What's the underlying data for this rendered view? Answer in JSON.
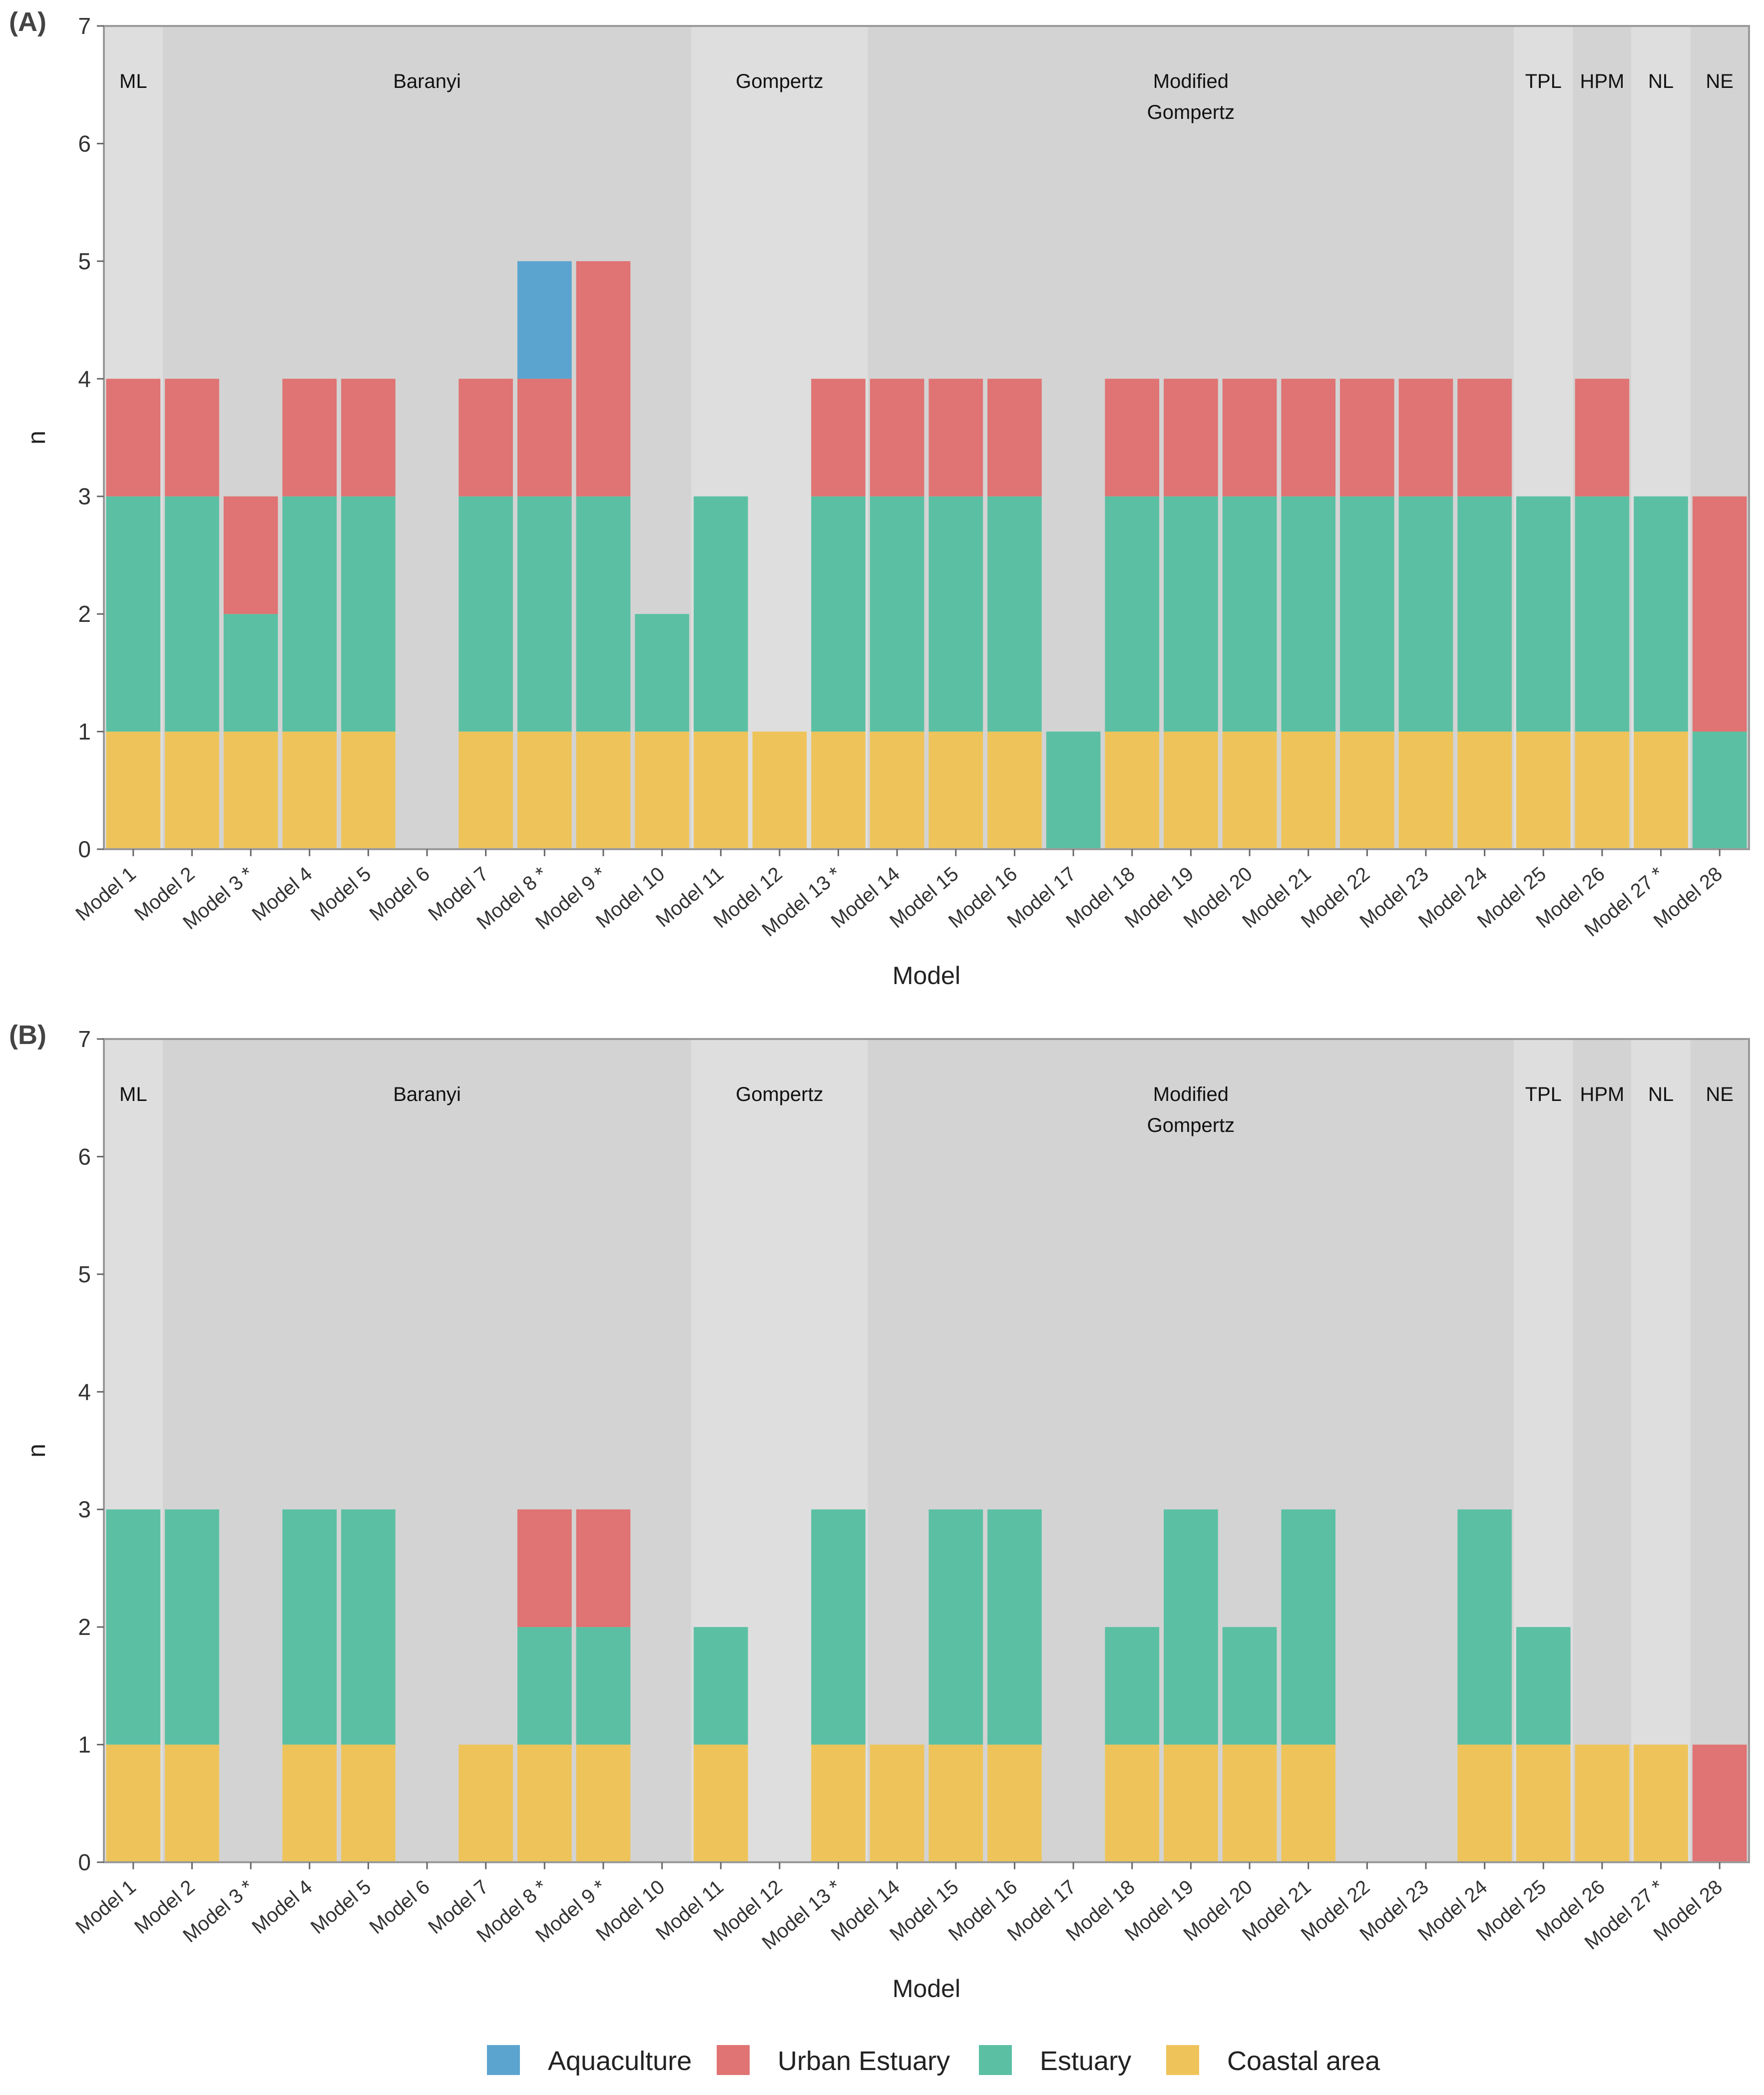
{
  "chart_data": {
    "type": "bar",
    "stacked": true,
    "categories": [
      "Model 1",
      "Model 2",
      "Model 3 *",
      "Model 4",
      "Model 5",
      "Model 6",
      "Model 7",
      "Model 8 *",
      "Model 9 *",
      "Model 10",
      "Model 11",
      "Model 12",
      "Model 13 *",
      "Model 14",
      "Model 15",
      "Model 16",
      "Model 17",
      "Model 18",
      "Model 19",
      "Model 20",
      "Model 21",
      "Model 22",
      "Model 23",
      "Model 24",
      "Model 25",
      "Model 26",
      "Model 27 *",
      "Model 28"
    ],
    "legend": [
      {
        "name": "Aquaculture",
        "color": "#5ba4cf"
      },
      {
        "name": "Urban Estuary",
        "color": "#e07373"
      },
      {
        "name": "Estuary",
        "color": "#5bc0a3"
      },
      {
        "name": "Coastal area",
        "color": "#eec45a"
      }
    ],
    "groups": [
      {
        "label": "ML",
        "start": 0,
        "end": 0,
        "shade": "light"
      },
      {
        "label": "Baranyi",
        "start": 1,
        "end": 9,
        "shade": "dark"
      },
      {
        "label": "Gompertz",
        "start": 10,
        "end": 12,
        "shade": "light"
      },
      {
        "label": "Modified Gompertz",
        "lines": [
          "Modified",
          "Gompertz"
        ],
        "start": 13,
        "end": 23,
        "shade": "dark"
      },
      {
        "label": "TPL",
        "start": 24,
        "end": 24,
        "shade": "light"
      },
      {
        "label": "HPM",
        "start": 25,
        "end": 25,
        "shade": "dark"
      },
      {
        "label": "NL",
        "start": 26,
        "end": 26,
        "shade": "light"
      },
      {
        "label": "NE",
        "start": 27,
        "end": 27,
        "shade": "dark"
      }
    ],
    "panels": [
      {
        "panel_label": "(A)",
        "xlabel": "Model",
        "ylabel": "n",
        "ylim": [
          0,
          7
        ],
        "yticks": [
          0,
          1,
          2,
          3,
          4,
          5,
          6,
          7
        ],
        "series": [
          {
            "name": "Coastal area",
            "values": [
              1,
              1,
              1,
              1,
              1,
              0,
              1,
              1,
              1,
              1,
              1,
              1,
              1,
              1,
              1,
              1,
              0,
              1,
              1,
              1,
              1,
              1,
              1,
              1,
              1,
              1,
              1,
              0
            ]
          },
          {
            "name": "Estuary",
            "values": [
              2,
              2,
              1,
              2,
              2,
              0,
              2,
              2,
              2,
              1,
              2,
              0,
              2,
              2,
              2,
              2,
              1,
              2,
              2,
              2,
              2,
              2,
              2,
              2,
              2,
              2,
              2,
              1
            ]
          },
          {
            "name": "Urban Estuary",
            "values": [
              1,
              1,
              1,
              1,
              1,
              0,
              1,
              1,
              2,
              0,
              0,
              0,
              1,
              1,
              1,
              1,
              0,
              1,
              1,
              1,
              1,
              1,
              1,
              1,
              0,
              1,
              0,
              2
            ]
          },
          {
            "name": "Aquaculture",
            "values": [
              0,
              0,
              0,
              0,
              0,
              0,
              0,
              1,
              0,
              0,
              0,
              0,
              0,
              0,
              0,
              0,
              0,
              0,
              0,
              0,
              0,
              0,
              0,
              0,
              0,
              0,
              0,
              0
            ]
          }
        ]
      },
      {
        "panel_label": "(B)",
        "xlabel": "Model",
        "ylabel": "n",
        "ylim": [
          0,
          7
        ],
        "yticks": [
          0,
          1,
          2,
          3,
          4,
          5,
          6,
          7
        ],
        "series": [
          {
            "name": "Coastal area",
            "values": [
              1,
              1,
              0,
              1,
              1,
              0,
              1,
              1,
              1,
              0,
              1,
              0,
              1,
              1,
              1,
              1,
              0,
              1,
              1,
              1,
              1,
              0,
              0,
              1,
              1,
              1,
              1,
              0
            ]
          },
          {
            "name": "Estuary",
            "values": [
              2,
              2,
              0,
              2,
              2,
              0,
              0,
              1,
              1,
              0,
              1,
              0,
              2,
              0,
              2,
              2,
              0,
              1,
              2,
              1,
              2,
              0,
              0,
              2,
              1,
              0,
              0,
              0
            ]
          },
          {
            "name": "Urban Estuary",
            "values": [
              0,
              0,
              0,
              0,
              0,
              0,
              0,
              1,
              1,
              0,
              0,
              0,
              0,
              0,
              0,
              0,
              0,
              0,
              0,
              0,
              0,
              0,
              0,
              0,
              0,
              0,
              0,
              1
            ]
          },
          {
            "name": "Aquaculture",
            "values": [
              0,
              0,
              0,
              0,
              0,
              0,
              0,
              0,
              0,
              0,
              0,
              0,
              0,
              0,
              0,
              0,
              0,
              0,
              0,
              0,
              0,
              0,
              0,
              0,
              0,
              0,
              0,
              0
            ]
          }
        ]
      }
    ]
  }
}
